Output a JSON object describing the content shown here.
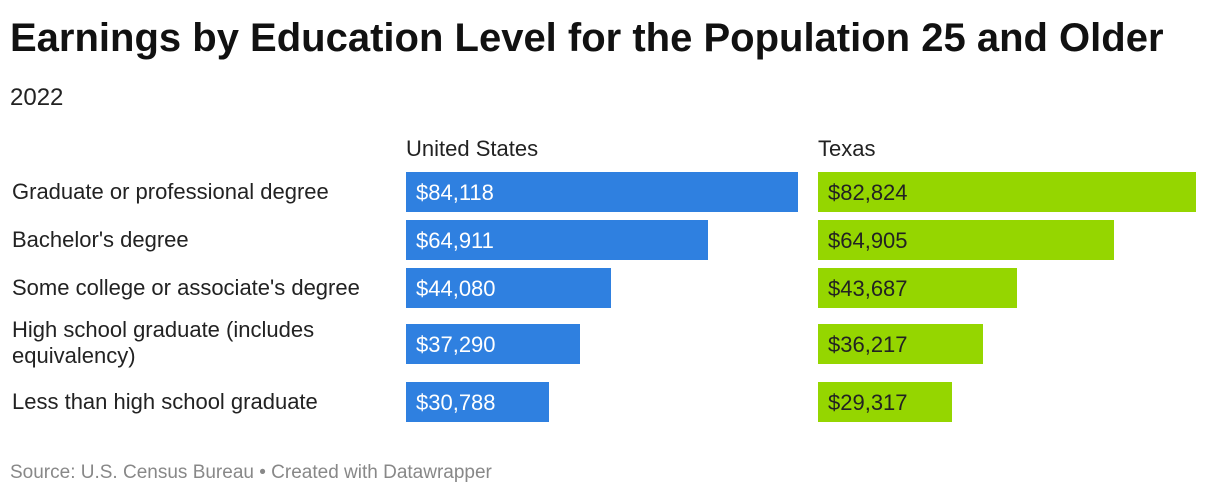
{
  "header": {
    "title": "Earnings by Education Level for the Population 25 and Older",
    "subtitle": "2022"
  },
  "footer": {
    "source": "Source: U.S. Census Bureau • Created with Datawrapper"
  },
  "colors": {
    "united_states": "#2f80e0",
    "texas": "#95d600",
    "us_label": "#ffffff",
    "tx_label": "#222222"
  },
  "chart_data": {
    "type": "bar",
    "orientation": "horizontal",
    "title": "Earnings by Education Level for the Population 25 and Older",
    "subtitle": "2022",
    "categories": [
      "Graduate or professional degree",
      "Bachelor's degree",
      "Some college or associate's degree",
      "High school graduate (includes equivalency)",
      "Less than high school graduate"
    ],
    "series": [
      {
        "name": "United States",
        "values": [
          84118,
          64911,
          44080,
          37290,
          30788
        ],
        "labels": [
          "$84,118",
          "$64,911",
          "$44,080",
          "$37,290",
          "$30,788"
        ]
      },
      {
        "name": "Texas",
        "values": [
          82824,
          64905,
          43687,
          36217,
          29317
        ],
        "labels": [
          "$82,824",
          "$64,905",
          "$43,687",
          "$36,217",
          "$29,317"
        ]
      }
    ],
    "xlim": [
      0,
      84118
    ],
    "grid": false,
    "legend": "none",
    "source": "Source: U.S. Census Bureau • Created with Datawrapper"
  }
}
